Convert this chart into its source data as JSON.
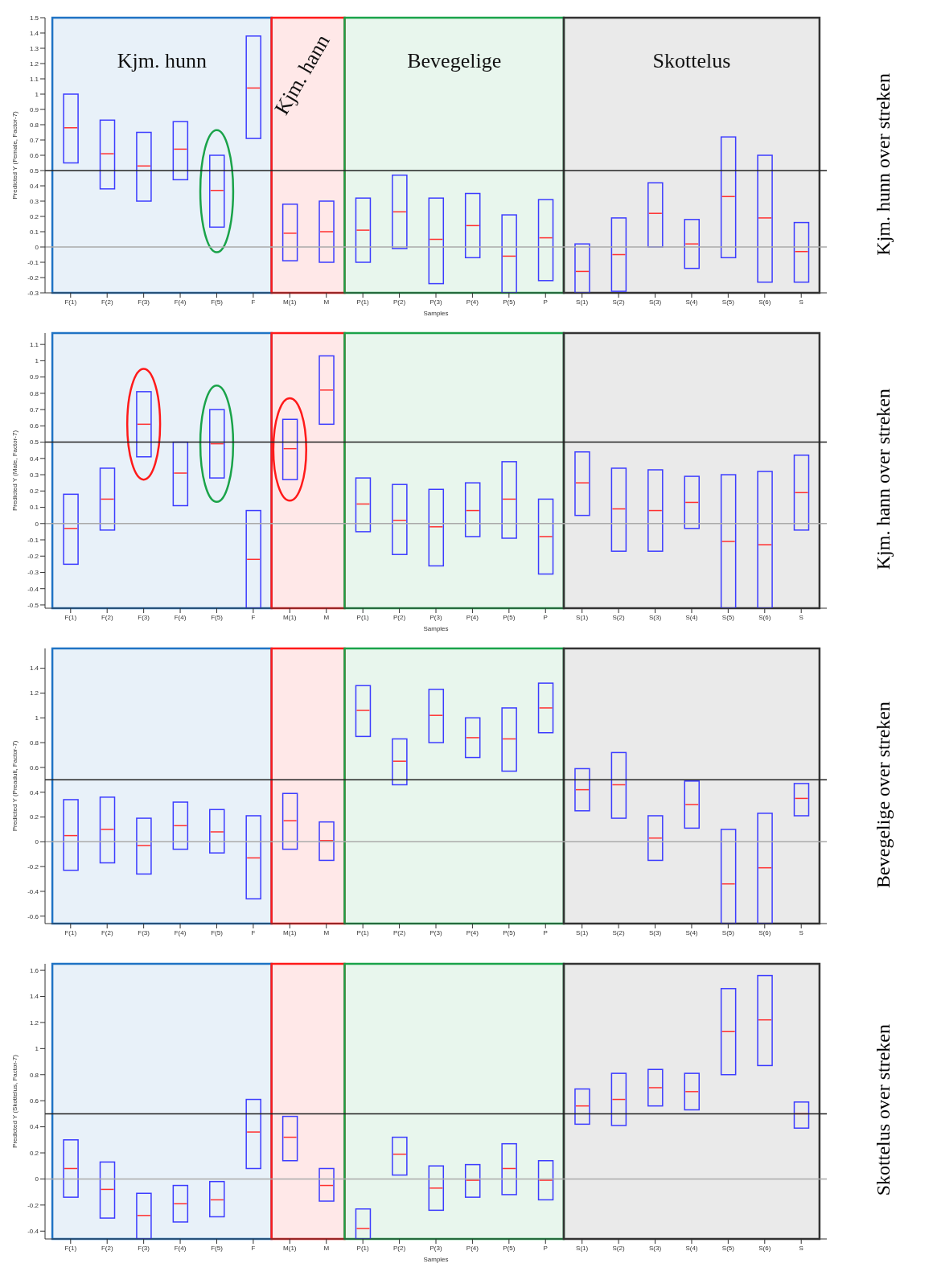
{
  "chart_data": [
    {
      "type": "box",
      "xlabel": "Samples",
      "ylabel": "Predicted Y (Female, Factor-7)",
      "categories": [
        "F(1)",
        "F(2)",
        "F(3)",
        "F(4)",
        "F(5)",
        "F",
        "M(1)",
        "M",
        "P(1)",
        "P(2)",
        "P(3)",
        "P(4)",
        "P(5)",
        "P",
        "S(1)",
        "S(2)",
        "S(3)",
        "S(4)",
        "S(5)",
        "S(6)",
        "S"
      ],
      "series": [
        {
          "color": "#3c3cff",
          "boxes": [
            {
              "low": 0.55,
              "q1": 0.55,
              "median": 0.78,
              "q3": 1.0,
              "high": 1.0
            },
            {
              "low": 0.38,
              "q1": 0.38,
              "median": 0.61,
              "q3": 0.83,
              "high": 0.83
            },
            {
              "low": 0.3,
              "q1": 0.3,
              "median": 0.53,
              "q3": 0.75,
              "high": 0.75
            },
            {
              "low": 0.44,
              "q1": 0.44,
              "median": 0.64,
              "q3": 0.82,
              "high": 0.82
            },
            {
              "low": 0.13,
              "q1": 0.13,
              "median": 0.37,
              "q3": 0.6,
              "high": 0.6
            },
            {
              "low": 0.71,
              "q1": 0.71,
              "median": 1.04,
              "q3": 1.38,
              "high": 1.38
            },
            {
              "low": -0.09,
              "q1": -0.09,
              "median": 0.09,
              "q3": 0.28,
              "high": 0.28
            },
            {
              "low": -0.1,
              "q1": -0.1,
              "median": 0.1,
              "q3": 0.3,
              "high": 0.3
            },
            {
              "low": -0.1,
              "q1": -0.1,
              "median": 0.11,
              "q3": 0.32,
              "high": 0.32
            },
            {
              "low": -0.01,
              "q1": -0.01,
              "median": 0.23,
              "q3": 0.47,
              "high": 0.47
            },
            {
              "low": -0.24,
              "q1": -0.24,
              "median": 0.05,
              "q3": 0.32,
              "high": 0.32
            },
            {
              "low": -0.07,
              "q1": -0.07,
              "median": 0.14,
              "q3": 0.35,
              "high": 0.35
            },
            {
              "low": -0.3,
              "q1": -0.3,
              "median": -0.06,
              "q3": 0.21,
              "high": 0.21
            },
            {
              "low": -0.22,
              "q1": -0.22,
              "median": 0.06,
              "q3": 0.31,
              "high": 0.31
            },
            {
              "low": -0.3,
              "q1": -0.3,
              "median": -0.16,
              "q3": 0.02,
              "high": 0.02
            },
            {
              "low": -0.29,
              "q1": -0.29,
              "median": -0.05,
              "q3": 0.19,
              "high": 0.19
            },
            {
              "low": 0.0,
              "q1": 0.0,
              "median": 0.22,
              "q3": 0.42,
              "high": 0.42
            },
            {
              "low": -0.14,
              "q1": -0.14,
              "median": 0.02,
              "q3": 0.18,
              "high": 0.18
            },
            {
              "low": -0.07,
              "q1": -0.07,
              "median": 0.33,
              "q3": 0.72,
              "high": 0.72
            },
            {
              "low": -0.23,
              "q1": -0.23,
              "median": 0.19,
              "q3": 0.6,
              "high": 0.6
            },
            {
              "low": -0.23,
              "q1": -0.23,
              "median": -0.03,
              "q3": 0.16,
              "high": 0.16
            }
          ]
        }
      ],
      "ylim": [
        -0.3,
        1.5
      ],
      "yticks": [
        -0.3,
        -0.2,
        -0.1,
        0,
        0.1,
        0.2,
        0.3,
        0.4,
        0.5,
        0.6,
        0.7,
        0.8,
        0.9,
        1,
        1.1,
        1.2,
        1.3,
        1.4,
        1.5
      ],
      "ref_lines": [
        {
          "axis": "y",
          "value": 0.5,
          "color": "#222222"
        },
        {
          "axis": "y",
          "value": 0,
          "color": "#aaaaaa"
        }
      ],
      "bands": [
        {
          "axis": "x",
          "from": "F(1)",
          "to": "F",
          "label": "Kjm. hunn",
          "color": "#1f73c4"
        },
        {
          "axis": "x",
          "from": "M(1)",
          "to": "M",
          "label": "Kjm. hann",
          "color": "#ff1a1a"
        },
        {
          "axis": "x",
          "from": "P(1)",
          "to": "P",
          "label": "Bevegelige",
          "color": "#1aa34a"
        },
        {
          "axis": "x",
          "from": "S(1)",
          "to": "S",
          "label": "Skottelus",
          "color": "#333333"
        }
      ],
      "annotations": [
        "Kjm. hunn over streken"
      ],
      "grid": false,
      "legend": false
    },
    {
      "type": "box",
      "xlabel": "Samples",
      "ylabel": "Predicted Y (Male, Factor-7)",
      "categories": [
        "F(1)",
        "F(2)",
        "F(3)",
        "F(4)",
        "F(5)",
        "F",
        "M(1)",
        "M",
        "P(1)",
        "P(2)",
        "P(3)",
        "P(4)",
        "P(5)",
        "P",
        "S(1)",
        "S(2)",
        "S(3)",
        "S(4)",
        "S(5)",
        "S(6)",
        "S"
      ],
      "series": [
        {
          "color": "#3c3cff",
          "boxes": [
            {
              "low": -0.25,
              "q1": -0.25,
              "median": -0.03,
              "q3": 0.18,
              "high": 0.18
            },
            {
              "low": -0.04,
              "q1": -0.04,
              "median": 0.15,
              "q3": 0.34,
              "high": 0.34
            },
            {
              "low": 0.41,
              "q1": 0.41,
              "median": 0.61,
              "q3": 0.81,
              "high": 0.81
            },
            {
              "low": 0.11,
              "q1": 0.11,
              "median": 0.31,
              "q3": 0.5,
              "high": 0.5
            },
            {
              "low": 0.28,
              "q1": 0.28,
              "median": 0.49,
              "q3": 0.7,
              "high": 0.7
            },
            {
              "low": -0.52,
              "q1": -0.52,
              "median": -0.22,
              "q3": 0.08,
              "high": 0.08
            },
            {
              "low": 0.27,
              "q1": 0.27,
              "median": 0.46,
              "q3": 0.64,
              "high": 0.64
            },
            {
              "low": 0.61,
              "q1": 0.61,
              "median": 0.82,
              "q3": 1.03,
              "high": 1.03
            },
            {
              "low": -0.05,
              "q1": -0.05,
              "median": 0.12,
              "q3": 0.28,
              "high": 0.28
            },
            {
              "low": -0.19,
              "q1": -0.19,
              "median": 0.02,
              "q3": 0.24,
              "high": 0.24
            },
            {
              "low": -0.26,
              "q1": -0.26,
              "median": -0.02,
              "q3": 0.21,
              "high": 0.21
            },
            {
              "low": -0.08,
              "q1": -0.08,
              "median": 0.08,
              "q3": 0.25,
              "high": 0.25
            },
            {
              "low": -0.09,
              "q1": -0.09,
              "median": 0.15,
              "q3": 0.38,
              "high": 0.38
            },
            {
              "low": -0.31,
              "q1": -0.31,
              "median": -0.08,
              "q3": 0.15,
              "high": 0.15
            },
            {
              "low": 0.05,
              "q1": 0.05,
              "median": 0.25,
              "q3": 0.44,
              "high": 0.44
            },
            {
              "low": -0.17,
              "q1": -0.17,
              "median": 0.09,
              "q3": 0.34,
              "high": 0.34
            },
            {
              "low": -0.17,
              "q1": -0.17,
              "median": 0.08,
              "q3": 0.33,
              "high": 0.33
            },
            {
              "low": -0.03,
              "q1": -0.03,
              "median": 0.13,
              "q3": 0.29,
              "high": 0.29
            },
            {
              "low": -0.52,
              "q1": -0.52,
              "median": -0.11,
              "q3": 0.3,
              "high": 0.3
            },
            {
              "low": -0.52,
              "q1": -0.52,
              "median": -0.13,
              "q3": 0.32,
              "high": 0.32
            },
            {
              "low": -0.04,
              "q1": -0.04,
              "median": 0.19,
              "q3": 0.42,
              "high": 0.42
            }
          ]
        }
      ],
      "ylim": [
        -0.52,
        1.17
      ],
      "yticks": [
        -0.5,
        -0.4,
        -0.3,
        -0.2,
        -0.1,
        0,
        0.1,
        0.2,
        0.3,
        0.4,
        0.5,
        0.6,
        0.7,
        0.8,
        0.9,
        1,
        1.1
      ],
      "ref_lines": [
        {
          "axis": "y",
          "value": 0.5,
          "color": "#222222"
        },
        {
          "axis": "y",
          "value": 0,
          "color": "#aaaaaa"
        }
      ],
      "bands": [
        {
          "axis": "x",
          "from": "F(1)",
          "to": "F",
          "color": "#1f73c4"
        },
        {
          "axis": "x",
          "from": "M(1)",
          "to": "M",
          "color": "#ff1a1a"
        },
        {
          "axis": "x",
          "from": "P(1)",
          "to": "P",
          "color": "#1aa34a"
        },
        {
          "axis": "x",
          "from": "S(1)",
          "to": "S",
          "color": "#333333"
        }
      ],
      "annotations": [
        "Kjm. hann over streken"
      ],
      "grid": false,
      "legend": false
    },
    {
      "type": "box",
      "ylabel": "Predicted Y (Preadult, Factor-7)",
      "categories": [
        "F(1)",
        "F(2)",
        "F(3)",
        "F(4)",
        "F(5)",
        "F",
        "M(1)",
        "M",
        "P(1)",
        "P(2)",
        "P(3)",
        "P(4)",
        "P(5)",
        "P",
        "S(1)",
        "S(2)",
        "S(3)",
        "S(4)",
        "S(5)",
        "S(6)",
        "S"
      ],
      "series": [
        {
          "color": "#3c3cff",
          "boxes": [
            {
              "low": -0.23,
              "q1": -0.23,
              "median": 0.05,
              "q3": 0.34,
              "high": 0.34
            },
            {
              "low": -0.17,
              "q1": -0.17,
              "median": 0.1,
              "q3": 0.36,
              "high": 0.36
            },
            {
              "low": -0.26,
              "q1": -0.26,
              "median": -0.03,
              "q3": 0.19,
              "high": 0.19
            },
            {
              "low": -0.06,
              "q1": -0.06,
              "median": 0.13,
              "q3": 0.32,
              "high": 0.32
            },
            {
              "low": -0.09,
              "q1": -0.09,
              "median": 0.08,
              "q3": 0.26,
              "high": 0.26
            },
            {
              "low": -0.46,
              "q1": -0.46,
              "median": -0.13,
              "q3": 0.21,
              "high": 0.21
            },
            {
              "low": -0.06,
              "q1": -0.06,
              "median": 0.17,
              "q3": 0.39,
              "high": 0.39
            },
            {
              "low": -0.15,
              "q1": -0.15,
              "median": 0.01,
              "q3": 0.16,
              "high": 0.16
            },
            {
              "low": 0.85,
              "q1": 0.85,
              "median": 1.06,
              "q3": 1.26,
              "high": 1.26
            },
            {
              "low": 0.46,
              "q1": 0.46,
              "median": 0.65,
              "q3": 0.83,
              "high": 0.83
            },
            {
              "low": 0.8,
              "q1": 0.8,
              "median": 1.02,
              "q3": 1.23,
              "high": 1.23
            },
            {
              "low": 0.68,
              "q1": 0.68,
              "median": 0.84,
              "q3": 1.0,
              "high": 1.0
            },
            {
              "low": 0.57,
              "q1": 0.57,
              "median": 0.83,
              "q3": 1.08,
              "high": 1.08
            },
            {
              "low": 0.88,
              "q1": 0.88,
              "median": 1.08,
              "q3": 1.28,
              "high": 1.28
            },
            {
              "low": 0.25,
              "q1": 0.25,
              "median": 0.42,
              "q3": 0.59,
              "high": 0.59
            },
            {
              "low": 0.19,
              "q1": 0.19,
              "median": 0.46,
              "q3": 0.72,
              "high": 0.72
            },
            {
              "low": -0.15,
              "q1": -0.15,
              "median": 0.03,
              "q3": 0.21,
              "high": 0.21
            },
            {
              "low": 0.11,
              "q1": 0.11,
              "median": 0.3,
              "q3": 0.49,
              "high": 0.49
            },
            {
              "low": -0.66,
              "q1": -0.66,
              "median": -0.34,
              "q3": 0.1,
              "high": 0.1
            },
            {
              "low": -0.66,
              "q1": -0.66,
              "median": -0.21,
              "q3": 0.23,
              "high": 0.23
            },
            {
              "low": 0.21,
              "q1": 0.21,
              "median": 0.35,
              "q3": 0.47,
              "high": 0.47
            }
          ]
        }
      ],
      "ylim": [
        -0.66,
        1.56
      ],
      "yticks": [
        -0.6,
        -0.4,
        -0.2,
        0,
        0.2,
        0.4,
        0.6,
        0.8,
        1,
        1.2,
        1.4
      ],
      "ref_lines": [
        {
          "axis": "y",
          "value": 0.5,
          "color": "#222222"
        },
        {
          "axis": "y",
          "value": 0,
          "color": "#aaaaaa"
        }
      ],
      "bands": [
        {
          "axis": "x",
          "from": "F(1)",
          "to": "F",
          "color": "#1f73c4"
        },
        {
          "axis": "x",
          "from": "M(1)",
          "to": "M",
          "color": "#ff1a1a"
        },
        {
          "axis": "x",
          "from": "P(1)",
          "to": "P",
          "color": "#1aa34a"
        },
        {
          "axis": "x",
          "from": "S(1)",
          "to": "S",
          "color": "#333333"
        }
      ],
      "annotations": [
        "Bevegelige over streken"
      ],
      "grid": false,
      "legend": false
    },
    {
      "type": "box",
      "xlabel": "Samples",
      "ylabel": "Predicted Y (Skottelus, Factor-7)",
      "categories": [
        "F(1)",
        "F(2)",
        "F(3)",
        "F(4)",
        "F(5)",
        "F",
        "M(1)",
        "M",
        "P(1)",
        "P(2)",
        "P(3)",
        "P(4)",
        "P(5)",
        "P",
        "S(1)",
        "S(2)",
        "S(3)",
        "S(4)",
        "S(5)",
        "S(6)",
        "S"
      ],
      "series": [
        {
          "color": "#3c3cff",
          "boxes": [
            {
              "low": -0.14,
              "q1": -0.14,
              "median": 0.08,
              "q3": 0.3,
              "high": 0.3
            },
            {
              "low": -0.3,
              "q1": -0.3,
              "median": -0.08,
              "q3": 0.13,
              "high": 0.13
            },
            {
              "low": -0.46,
              "q1": -0.46,
              "median": -0.28,
              "q3": -0.11,
              "high": -0.11
            },
            {
              "low": -0.33,
              "q1": -0.33,
              "median": -0.19,
              "q3": -0.05,
              "high": -0.05
            },
            {
              "low": -0.29,
              "q1": -0.29,
              "median": -0.16,
              "q3": -0.02,
              "high": -0.02
            },
            {
              "low": 0.08,
              "q1": 0.08,
              "median": 0.36,
              "q3": 0.61,
              "high": 0.61
            },
            {
              "low": 0.14,
              "q1": 0.14,
              "median": 0.32,
              "q3": 0.48,
              "high": 0.48
            },
            {
              "low": -0.17,
              "q1": -0.17,
              "median": -0.05,
              "q3": 0.08,
              "high": 0.08
            },
            {
              "low": -0.46,
              "q1": -0.46,
              "median": -0.38,
              "q3": -0.23,
              "high": -0.23
            },
            {
              "low": 0.03,
              "q1": 0.03,
              "median": 0.19,
              "q3": 0.32,
              "high": 0.32
            },
            {
              "low": -0.24,
              "q1": -0.24,
              "median": -0.07,
              "q3": 0.1,
              "high": 0.1
            },
            {
              "low": -0.14,
              "q1": -0.14,
              "median": -0.01,
              "q3": 0.11,
              "high": 0.11
            },
            {
              "low": -0.12,
              "q1": -0.12,
              "median": 0.08,
              "q3": 0.27,
              "high": 0.27
            },
            {
              "low": -0.16,
              "q1": -0.16,
              "median": -0.01,
              "q3": 0.14,
              "high": 0.14
            },
            {
              "low": 0.42,
              "q1": 0.42,
              "median": 0.56,
              "q3": 0.69,
              "high": 0.69
            },
            {
              "low": 0.41,
              "q1": 0.41,
              "median": 0.61,
              "q3": 0.81,
              "high": 0.81
            },
            {
              "low": 0.56,
              "q1": 0.56,
              "median": 0.7,
              "q3": 0.84,
              "high": 0.84
            },
            {
              "low": 0.53,
              "q1": 0.53,
              "median": 0.67,
              "q3": 0.81,
              "high": 0.81
            },
            {
              "low": 0.8,
              "q1": 0.8,
              "median": 1.13,
              "q3": 1.46,
              "high": 1.46
            },
            {
              "low": 0.87,
              "q1": 0.87,
              "median": 1.22,
              "q3": 1.56,
              "high": 1.56
            },
            {
              "low": 0.39,
              "q1": 0.39,
              "median": 0.5,
              "q3": 0.59,
              "high": 0.59
            }
          ]
        }
      ],
      "ylim": [
        -0.46,
        1.65
      ],
      "yticks": [
        -0.4,
        -0.2,
        0,
        0.2,
        0.4,
        0.6,
        0.8,
        1,
        1.2,
        1.4,
        1.6
      ],
      "ref_lines": [
        {
          "axis": "y",
          "value": 0.5,
          "color": "#222222"
        },
        {
          "axis": "y",
          "value": 0,
          "color": "#aaaaaa"
        }
      ],
      "bands": [
        {
          "axis": "x",
          "from": "F(1)",
          "to": "F",
          "color": "#1f73c4"
        },
        {
          "axis": "x",
          "from": "M(1)",
          "to": "M",
          "color": "#ff1a1a"
        },
        {
          "axis": "x",
          "from": "P(1)",
          "to": "P",
          "color": "#1aa34a"
        },
        {
          "axis": "x",
          "from": "S(1)",
          "to": "S",
          "color": "#333333"
        }
      ],
      "annotations": [
        "Skottelus over streken"
      ],
      "grid": false,
      "legend": false
    }
  ]
}
